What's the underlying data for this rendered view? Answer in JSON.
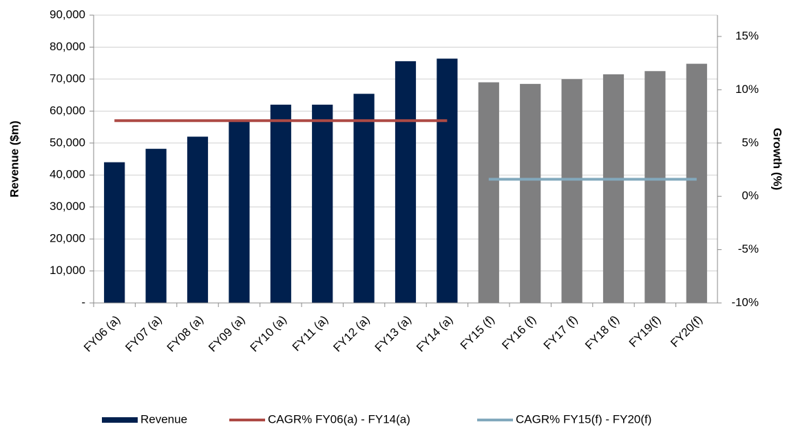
{
  "chart_data": {
    "type": "bar",
    "ylabel": "Revenue ($m)",
    "y2label": "Growth (%)",
    "categories": [
      "FY06 (a)",
      "FY07 (a)",
      "FY08 (a)",
      "FY09 (a)",
      "FY10 (a)",
      "FY11 (a)",
      "FY12 (a)",
      "FY13 (a)",
      "FY14 (a)",
      "FY15 (f)",
      "FY16 (f)",
      "FY17 (f)",
      "FY18 (f)",
      "FY19(f)",
      "FY20(f)"
    ],
    "series": [
      {
        "name": "Revenue",
        "type": "bar",
        "color": "#00204e",
        "colors": [
          "#00204e",
          "#00204e",
          "#00204e",
          "#00204e",
          "#00204e",
          "#00204e",
          "#00204e",
          "#00204e",
          "#00204e",
          "#7f7f80",
          "#7f7f80",
          "#7f7f80",
          "#7f7f80",
          "#7f7f80",
          "#7f7f80"
        ],
        "values": [
          44000,
          48200,
          52000,
          57000,
          62000,
          62000,
          65400,
          75600,
          76400,
          69000,
          68500,
          70000,
          71500,
          72500,
          74800
        ]
      },
      {
        "name": "CAGR% FY06(a) - FY14(a)",
        "type": "line",
        "axis": "y2",
        "color": "#ad4a45",
        "values": [
          7.1,
          7.1,
          7.1,
          7.1,
          7.1,
          7.1,
          7.1,
          7.1,
          7.1,
          null,
          null,
          null,
          null,
          null,
          null
        ]
      },
      {
        "name": "CAGR% FY15(f) - FY20(f)",
        "type": "line",
        "axis": "y2",
        "color": "#82a9bd",
        "values": [
          null,
          null,
          null,
          null,
          null,
          null,
          null,
          null,
          null,
          1.6,
          1.6,
          1.6,
          1.6,
          1.6,
          1.6
        ]
      }
    ],
    "ylim": [
      0,
      90000
    ],
    "yticks": [
      {
        "value": 0,
        "label": "-"
      },
      {
        "value": 10000,
        "label": "10,000"
      },
      {
        "value": 20000,
        "label": "20,000"
      },
      {
        "value": 30000,
        "label": "30,000"
      },
      {
        "value": 40000,
        "label": "40,000"
      },
      {
        "value": 50000,
        "label": "50,000"
      },
      {
        "value": 60000,
        "label": "60,000"
      },
      {
        "value": 70000,
        "label": "70,000"
      },
      {
        "value": 80000,
        "label": "80,000"
      },
      {
        "value": 90000,
        "label": "90,000"
      }
    ],
    "y2lim": [
      -10,
      17
    ],
    "y2ticks": [
      {
        "value": -10,
        "label": "-10%"
      },
      {
        "value": -5,
        "label": "-5%"
      },
      {
        "value": 0,
        "label": "0%"
      },
      {
        "value": 5,
        "label": "5%"
      },
      {
        "value": 10,
        "label": "10%"
      },
      {
        "value": 15,
        "label": "15%"
      }
    ],
    "grid": true,
    "legend": "bottom"
  }
}
